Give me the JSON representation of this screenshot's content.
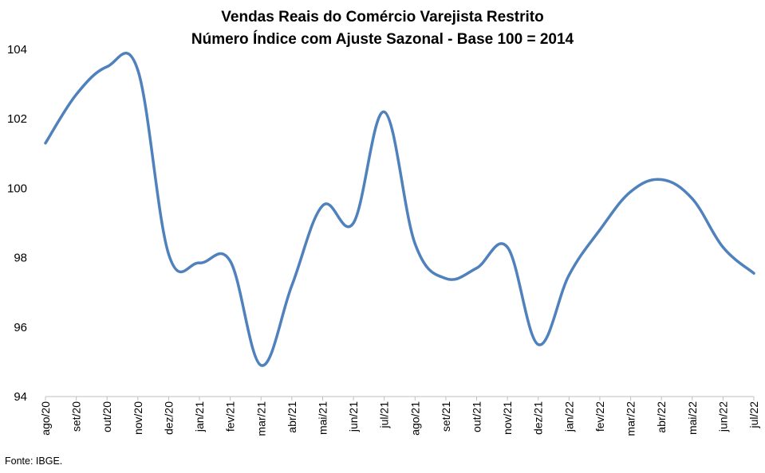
{
  "chart_data": {
    "type": "line",
    "title": "Vendas Reais do Comércio Varejista Restrito",
    "subtitle": "Número Índice com Ajuste Sazonal - Base 100 = 2014",
    "xlabel": "",
    "ylabel": "",
    "ylim": [
      94,
      104
    ],
    "yticks": [
      94,
      96,
      98,
      100,
      102,
      104
    ],
    "grid": false,
    "legend": "none",
    "categories": [
      "ago/20",
      "set/20",
      "out/20",
      "nov/20",
      "dez/20",
      "jan/21",
      "fev/21",
      "mar/21",
      "abr/21",
      "mai/21",
      "jun/21",
      "jul/21",
      "ago/21",
      "set/21",
      "out/21",
      "nov/21",
      "dez/21",
      "jan/22",
      "fev/22",
      "mar/22",
      "abr/22",
      "mai/22",
      "jun/22",
      "jul/22"
    ],
    "series": [
      {
        "color": "#4f81bd",
        "values": [
          101.3,
          102.7,
          103.5,
          103.4,
          98.1,
          97.85,
          97.9,
          94.9,
          97.2,
          99.5,
          99.0,
          102.2,
          98.4,
          97.4,
          97.7,
          98.3,
          95.5,
          97.5,
          98.8,
          99.9,
          100.25,
          99.7,
          98.3,
          97.55
        ]
      }
    ]
  },
  "source": "Fonte: IBGE."
}
